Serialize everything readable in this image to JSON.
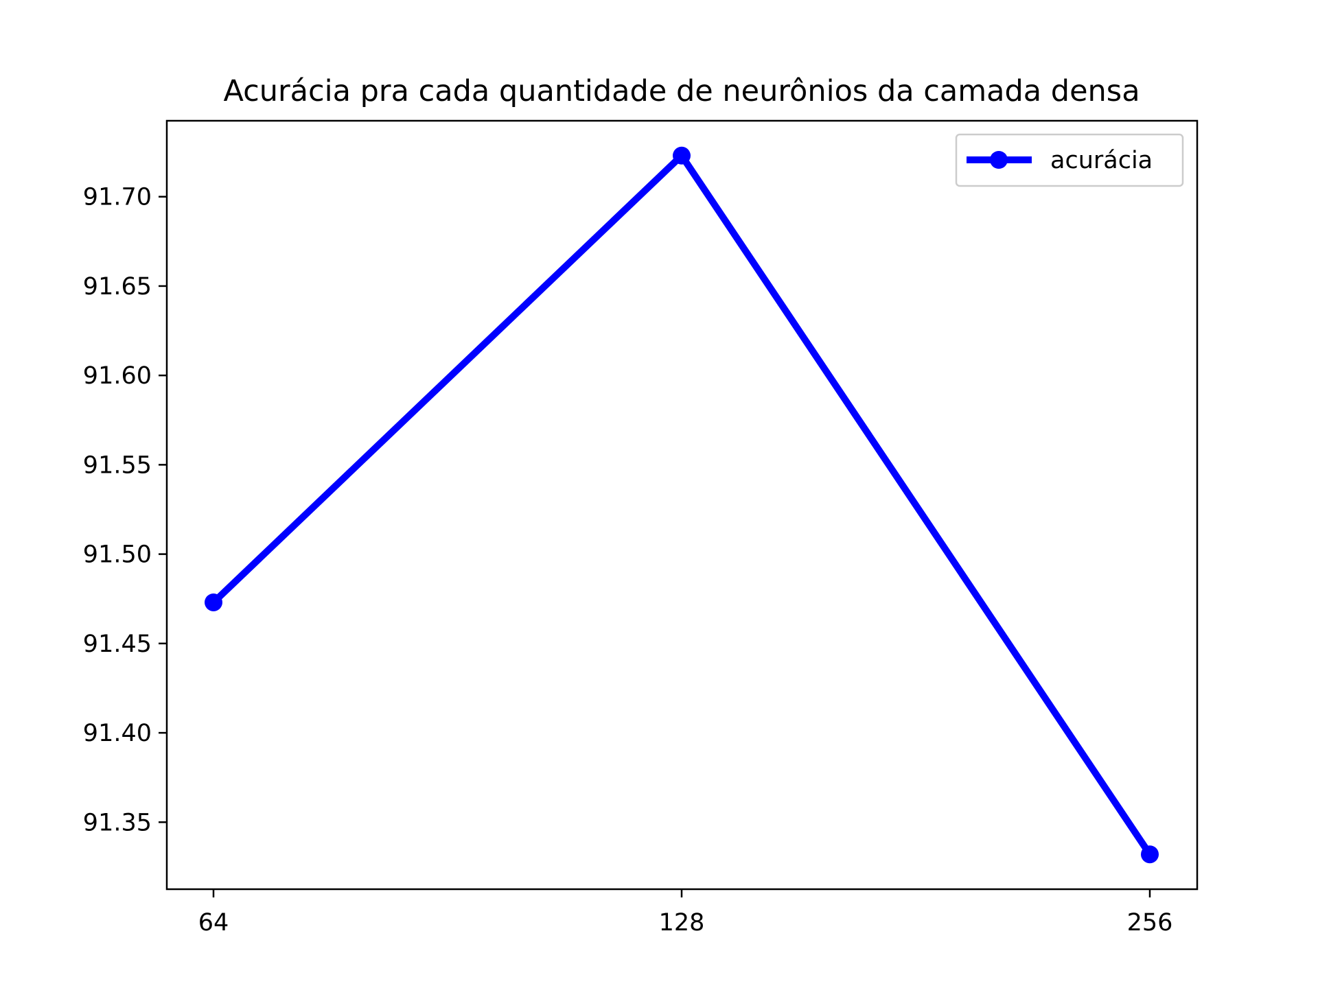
{
  "chart_data": {
    "type": "line",
    "title": "Acurácia pra cada quantidade de neurônios da camada densa",
    "xlabel": "",
    "ylabel": "",
    "categories": [
      "64",
      "128",
      "256"
    ],
    "series": [
      {
        "name": "acurácia",
        "values": [
          91.473,
          91.723,
          91.332
        ],
        "color": "#0000ff",
        "marker": "circle"
      }
    ],
    "yticks": [
      91.35,
      91.4,
      91.45,
      91.5,
      91.55,
      91.6,
      91.65,
      91.7
    ],
    "ytick_labels": [
      "91.35",
      "91.40",
      "91.45",
      "91.50",
      "91.55",
      "91.60",
      "91.65",
      "91.70"
    ],
    "ylim": [
      91.3125,
      91.7425
    ],
    "grid": false,
    "legend_position": "top-right"
  }
}
